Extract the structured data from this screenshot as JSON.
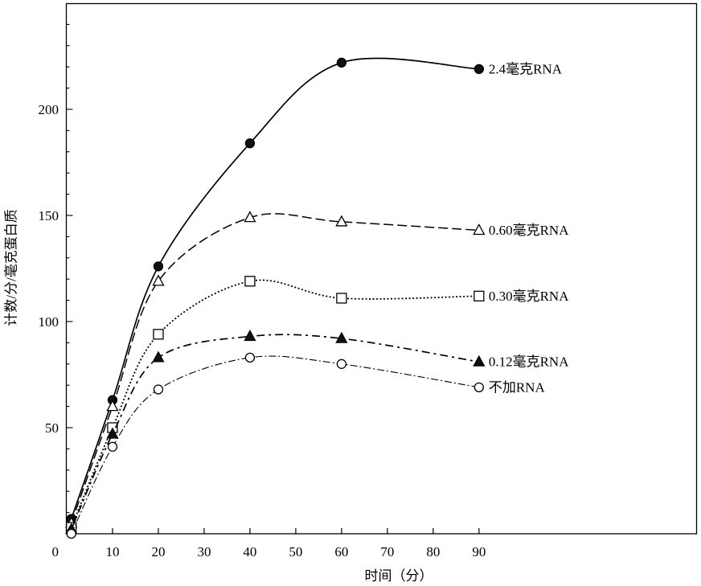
{
  "chart_data": {
    "type": "line",
    "title": "",
    "xlabel": "时间（分）",
    "ylabel": "计数/分/毫克蛋白质",
    "xlim": [
      0,
      137.5
    ],
    "ylim": [
      0,
      250
    ],
    "x_ticks": [
      0,
      10,
      20,
      30,
      40,
      50,
      60,
      70,
      80,
      90
    ],
    "y_ticks": [
      50,
      100,
      150,
      200
    ],
    "grid": false,
    "x": [
      1,
      10,
      20,
      40,
      60,
      90
    ],
    "series": [
      {
        "name": "2.4毫克RNA",
        "marker": "filled-circle",
        "line_style": "solid",
        "values": [
          7,
          63,
          126,
          184,
          222,
          219
        ]
      },
      {
        "name": "0.60毫克RNA",
        "marker": "open-triangle",
        "line_style": "long-dash",
        "values": [
          5,
          60,
          119,
          149,
          147,
          143
        ]
      },
      {
        "name": "0.30毫克RNA",
        "marker": "open-square",
        "line_style": "dotted",
        "values": [
          3,
          50,
          94,
          119,
          111,
          112
        ]
      },
      {
        "name": "0.12毫克RNA",
        "marker": "filled-triangle",
        "line_style": "dash-dot-bold",
        "values": [
          2,
          47,
          83,
          93,
          92,
          81
        ]
      },
      {
        "name": "不加RNA",
        "marker": "open-circle",
        "line_style": "dash-dot",
        "values": [
          0,
          41,
          68,
          83,
          80,
          69
        ]
      }
    ]
  }
}
